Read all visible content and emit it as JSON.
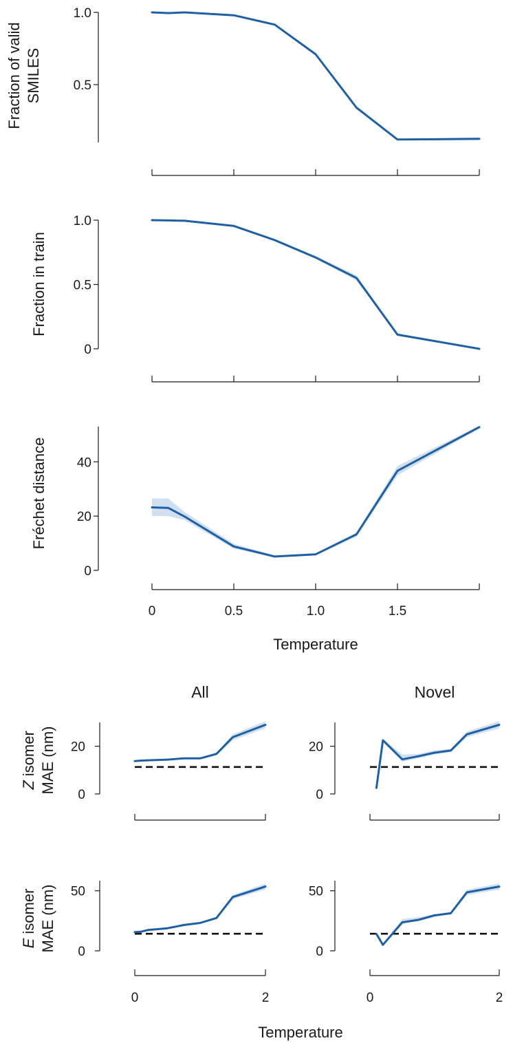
{
  "chart_data": [
    {
      "id": "valid",
      "type": "line",
      "ylabel_lines": [
        "Fraction of valid",
        "SMILES"
      ],
      "xlabel": "",
      "ylim": [
        0.1,
        1.0
      ],
      "xlim": [
        0,
        2
      ],
      "yticks": [
        {
          "value": 0.5,
          "label": "0.5"
        },
        {
          "value": 1.0,
          "label": "1.0"
        }
      ],
      "xticks": [
        {
          "value": 0,
          "label": ""
        },
        {
          "value": 0.5,
          "label": ""
        },
        {
          "value": 1.0,
          "label": ""
        },
        {
          "value": 1.5,
          "label": ""
        },
        {
          "value": 2,
          "label": ""
        }
      ],
      "series": [
        {
          "name": "Fraction of valid SMILES",
          "x": [
            0,
            0.1,
            0.2,
            0.5,
            0.75,
            1.0,
            1.25,
            1.5,
            2.0
          ],
          "y": [
            1.0,
            0.995,
            1.0,
            0.98,
            0.915,
            0.71,
            0.34,
            0.12,
            0.125
          ],
          "lower": [
            0.995,
            0.99,
            0.995,
            0.975,
            0.91,
            0.7,
            0.33,
            0.115,
            0.115
          ],
          "upper": [
            1.0,
            1.0,
            1.0,
            0.985,
            0.92,
            0.72,
            0.35,
            0.125,
            0.135
          ]
        }
      ]
    },
    {
      "id": "train",
      "type": "line",
      "ylabel_lines": [
        "Fraction in train"
      ],
      "xlabel": "",
      "ylim": [
        0,
        1.0
      ],
      "xlim": [
        0,
        2
      ],
      "yticks": [
        {
          "value": 0,
          "label": "0"
        },
        {
          "value": 0.5,
          "label": "0.5"
        },
        {
          "value": 1.0,
          "label": "1.0"
        }
      ],
      "xticks": [
        {
          "value": 0,
          "label": ""
        },
        {
          "value": 0.5,
          "label": ""
        },
        {
          "value": 1.0,
          "label": ""
        },
        {
          "value": 1.5,
          "label": ""
        },
        {
          "value": 2,
          "label": ""
        }
      ],
      "series": [
        {
          "name": "Fraction in train",
          "x": [
            0,
            0.1,
            0.2,
            0.5,
            0.75,
            1.0,
            1.25,
            1.5,
            2.0
          ],
          "y": [
            1.0,
            0.998,
            0.995,
            0.955,
            0.845,
            0.71,
            0.55,
            0.11,
            0.0
          ],
          "lower": [
            0.995,
            0.993,
            0.99,
            0.95,
            0.835,
            0.7,
            0.53,
            0.1,
            0.0
          ],
          "upper": [
            1.0,
            1.0,
            1.0,
            0.96,
            0.855,
            0.72,
            0.57,
            0.12,
            0.005
          ]
        }
      ]
    },
    {
      "id": "frechet",
      "type": "line",
      "ylabel_lines": [
        "Fréchet distance"
      ],
      "xlabel": "Temperature",
      "ylim": [
        0,
        53
      ],
      "xlim": [
        0,
        2
      ],
      "yticks": [
        {
          "value": 0,
          "label": "0"
        },
        {
          "value": 20,
          "label": "20"
        },
        {
          "value": 40,
          "label": "40"
        }
      ],
      "xticks": [
        {
          "value": 0,
          "label": "0"
        },
        {
          "value": 0.5,
          "label": "0.5"
        },
        {
          "value": 1.0,
          "label": "1.0"
        },
        {
          "value": 1.5,
          "label": "1.5"
        },
        {
          "value": 2,
          "label": ""
        }
      ],
      "series": [
        {
          "name": "Fréchet distance",
          "x": [
            0,
            0.1,
            0.2,
            0.5,
            0.75,
            1.0,
            1.25,
            1.5,
            2.0
          ],
          "y": [
            23.2,
            23.0,
            19.8,
            8.8,
            5.1,
            5.9,
            13.3,
            36.7,
            52.8
          ],
          "lower": [
            20.0,
            20.0,
            18.5,
            8.0,
            4.7,
            5.5,
            12.5,
            35.0,
            52.3
          ],
          "upper": [
            26.5,
            26.5,
            21.5,
            9.8,
            5.5,
            6.3,
            14.0,
            38.5,
            53.3
          ]
        }
      ]
    },
    {
      "id": "z_all",
      "type": "line",
      "title": "All",
      "ylabel_lines": [
        "Z isomer",
        "MAE (nm)"
      ],
      "ylabel_italic_word": "Z",
      "xlabel": "",
      "ylim": [
        0,
        30
      ],
      "xlim": [
        0,
        2
      ],
      "yticks": [
        {
          "value": 0,
          "label": "0"
        },
        {
          "value": 20,
          "label": "20"
        }
      ],
      "xticks": [
        {
          "value": 0,
          "label": ""
        },
        {
          "value": 2,
          "label": ""
        }
      ],
      "reference_line": 11.3,
      "series": [
        {
          "name": "Z isomer MAE (All)",
          "x": [
            0,
            0.1,
            0.2,
            0.5,
            0.75,
            1.0,
            1.25,
            1.5,
            2.0
          ],
          "y": [
            13.8,
            14.0,
            14.1,
            14.4,
            14.9,
            14.9,
            16.8,
            23.8,
            29.0
          ],
          "lower": [
            13.6,
            13.8,
            13.9,
            14.1,
            14.5,
            14.5,
            16.2,
            22.5,
            27.5
          ],
          "upper": [
            14.0,
            14.2,
            14.3,
            14.7,
            15.3,
            15.3,
            17.4,
            25.0,
            30.5
          ]
        }
      ]
    },
    {
      "id": "z_novel",
      "type": "line",
      "title": "Novel",
      "ylabel_lines": [],
      "xlabel": "",
      "ylim": [
        0,
        30
      ],
      "xlim": [
        0,
        2
      ],
      "yticks": [
        {
          "value": 0,
          "label": "0"
        },
        {
          "value": 20,
          "label": "20"
        }
      ],
      "xticks": [
        {
          "value": 0,
          "label": ""
        },
        {
          "value": 2,
          "label": ""
        }
      ],
      "reference_line": 11.3,
      "series": [
        {
          "name": "Z isomer MAE (Novel)",
          "x": [
            0.1,
            0.2,
            0.5,
            0.75,
            1.0,
            1.25,
            1.5,
            2.0
          ],
          "y": [
            2.5,
            22.5,
            14.5,
            15.8,
            17.3,
            18.2,
            25.0,
            29.0
          ],
          "lower": [
            2.3,
            22.0,
            13.5,
            15.0,
            16.5,
            17.5,
            23.8,
            27.5
          ],
          "upper": [
            2.7,
            23.0,
            16.5,
            16.8,
            18.3,
            18.9,
            26.2,
            30.5
          ]
        }
      ]
    },
    {
      "id": "e_all",
      "type": "line",
      "ylabel_lines": [
        "E isomer",
        "MAE (nm)"
      ],
      "ylabel_italic_word": "E",
      "xlabel": "Temperature",
      "ylim": [
        0,
        55
      ],
      "xlim": [
        0,
        2
      ],
      "yticks": [
        {
          "value": 0,
          "label": "0"
        },
        {
          "value": 50,
          "label": "50"
        }
      ],
      "xticks": [
        {
          "value": 0,
          "label": "0"
        },
        {
          "value": 2,
          "label": "2"
        }
      ],
      "reference_line": 14.2,
      "series": [
        {
          "name": "E isomer MAE (All)",
          "x": [
            0,
            0.1,
            0.2,
            0.5,
            0.75,
            1.0,
            1.25,
            1.5,
            2.0
          ],
          "y": [
            15.5,
            16.0,
            17.3,
            18.8,
            21.5,
            23.2,
            27.3,
            44.8,
            53.5
          ],
          "lower": [
            15.0,
            15.5,
            16.8,
            18.2,
            20.8,
            22.5,
            26.5,
            43.0,
            51.0
          ],
          "upper": [
            16.0,
            16.5,
            17.8,
            19.4,
            22.2,
            23.9,
            28.1,
            46.5,
            56.0
          ]
        }
      ]
    },
    {
      "id": "e_novel",
      "type": "line",
      "ylabel_lines": [],
      "xlabel": "",
      "ylim": [
        0,
        55
      ],
      "xlim": [
        0,
        2
      ],
      "yticks": [
        {
          "value": 0,
          "label": "0"
        },
        {
          "value": 50,
          "label": "50"
        }
      ],
      "xticks": [
        {
          "value": 0,
          "label": "0"
        },
        {
          "value": 2,
          "label": "2"
        }
      ],
      "reference_line": 14.2,
      "series": [
        {
          "name": "E isomer MAE (Novel)",
          "x": [
            0.1,
            0.2,
            0.5,
            0.75,
            1.0,
            1.25,
            1.5,
            2.0
          ],
          "y": [
            14.0,
            5.0,
            23.7,
            25.8,
            29.5,
            31.3,
            48.7,
            53.5
          ],
          "lower": [
            13.8,
            4.8,
            22.8,
            24.8,
            28.5,
            30.3,
            46.5,
            51.0
          ],
          "upper": [
            14.2,
            5.2,
            26.5,
            28.0,
            30.5,
            32.3,
            50.8,
            56.0
          ]
        }
      ]
    }
  ],
  "labels": {
    "bottom_xlabel": "Temperature"
  }
}
